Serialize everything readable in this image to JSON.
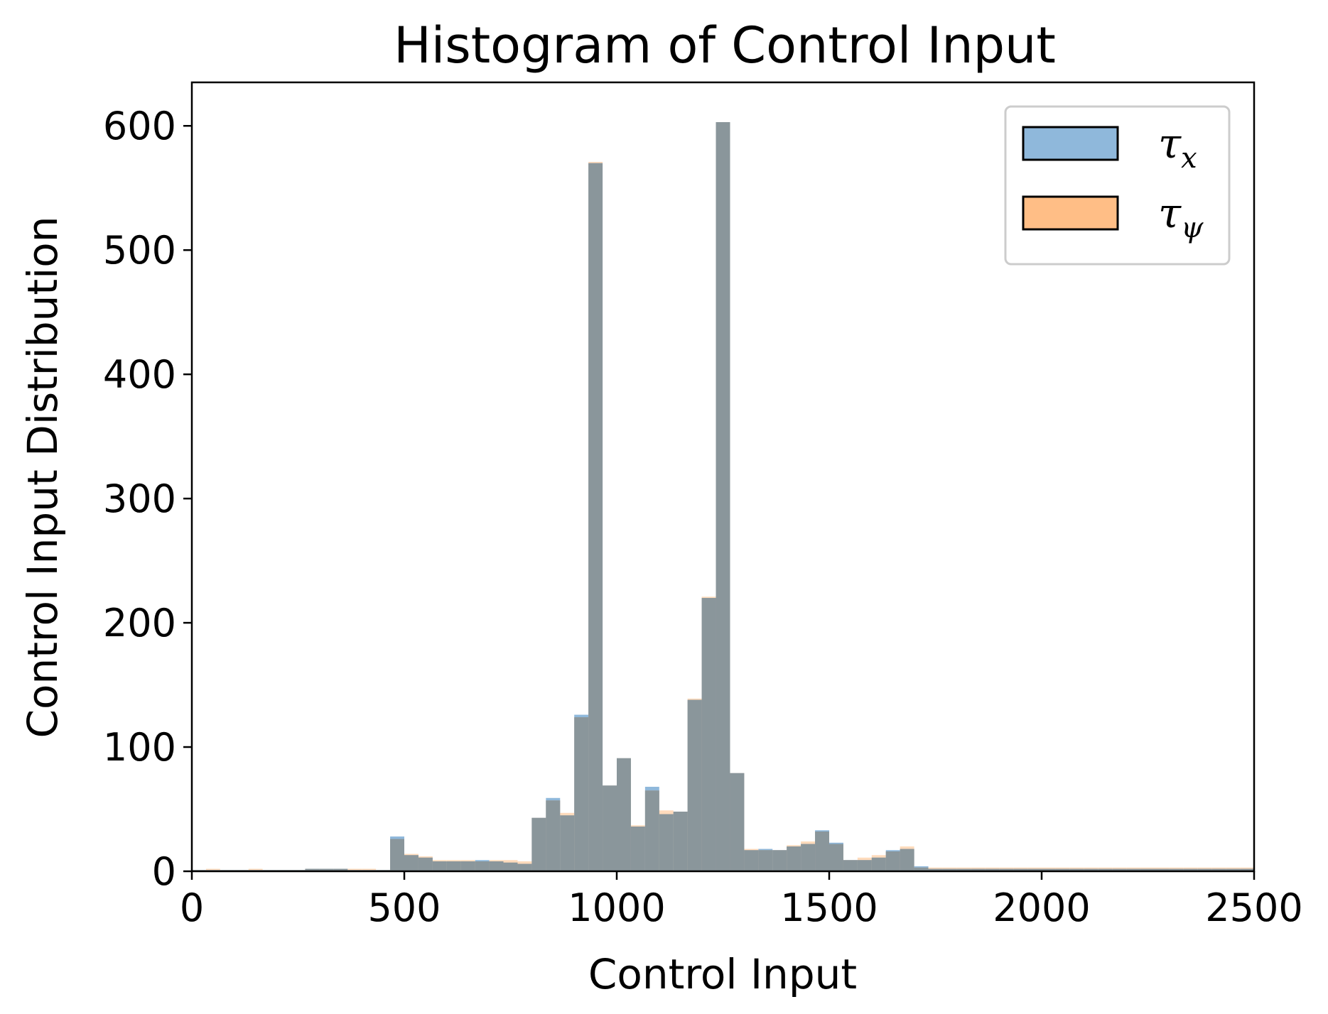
{
  "chart_data": {
    "type": "bar",
    "title": "Histogram of Control Input",
    "xlabel": "Control Input",
    "ylabel": "Control Input Distribution",
    "xlim": [
      0,
      2500
    ],
    "ylim": [
      0,
      635
    ],
    "xticks": [
      0,
      500,
      1000,
      1500,
      2000,
      2500
    ],
    "yticks": [
      0,
      100,
      200,
      300,
      400,
      500,
      600
    ],
    "bin_width": 33.3333,
    "legend_position": "top-right",
    "grid": false,
    "series": [
      {
        "name": "τ_x",
        "legend_main": "τ",
        "legend_sub": "x",
        "color": "#8fb8db",
        "values": [
          1,
          1,
          1,
          1,
          1,
          1,
          1,
          1,
          2,
          2,
          2,
          1,
          1,
          1,
          28,
          13,
          11,
          8,
          8,
          8,
          9,
          8,
          7,
          6,
          43,
          59,
          45,
          126,
          570,
          69,
          91,
          36,
          68,
          46,
          48,
          138,
          220,
          603,
          79,
          17,
          18,
          17,
          20,
          22,
          33,
          23,
          9,
          9,
          11,
          17,
          18,
          4,
          2,
          2,
          2,
          2,
          2,
          2,
          2,
          2,
          2,
          2,
          2,
          2,
          2,
          2,
          2,
          2,
          2,
          2,
          2,
          2,
          2,
          2,
          2
        ]
      },
      {
        "name": "τ_ψ",
        "legend_main": "τ",
        "legend_sub": "ψ",
        "color": "#ffbe86",
        "values": [
          1,
          2,
          1,
          1,
          2,
          1,
          1,
          1,
          2,
          2,
          2,
          2,
          2,
          1,
          26,
          14,
          12,
          9,
          9,
          9,
          8,
          9,
          9,
          8,
          43,
          57,
          47,
          124,
          571,
          69,
          91,
          37,
          65,
          49,
          48,
          139,
          221,
          603,
          79,
          18,
          17,
          17,
          21,
          24,
          32,
          22,
          9,
          11,
          13,
          16,
          20,
          3,
          3,
          3,
          3,
          3,
          3,
          3,
          3,
          3,
          3,
          3,
          3,
          3,
          3,
          3,
          3,
          3,
          3,
          3,
          3,
          3,
          3,
          3,
          3
        ]
      }
    ]
  }
}
